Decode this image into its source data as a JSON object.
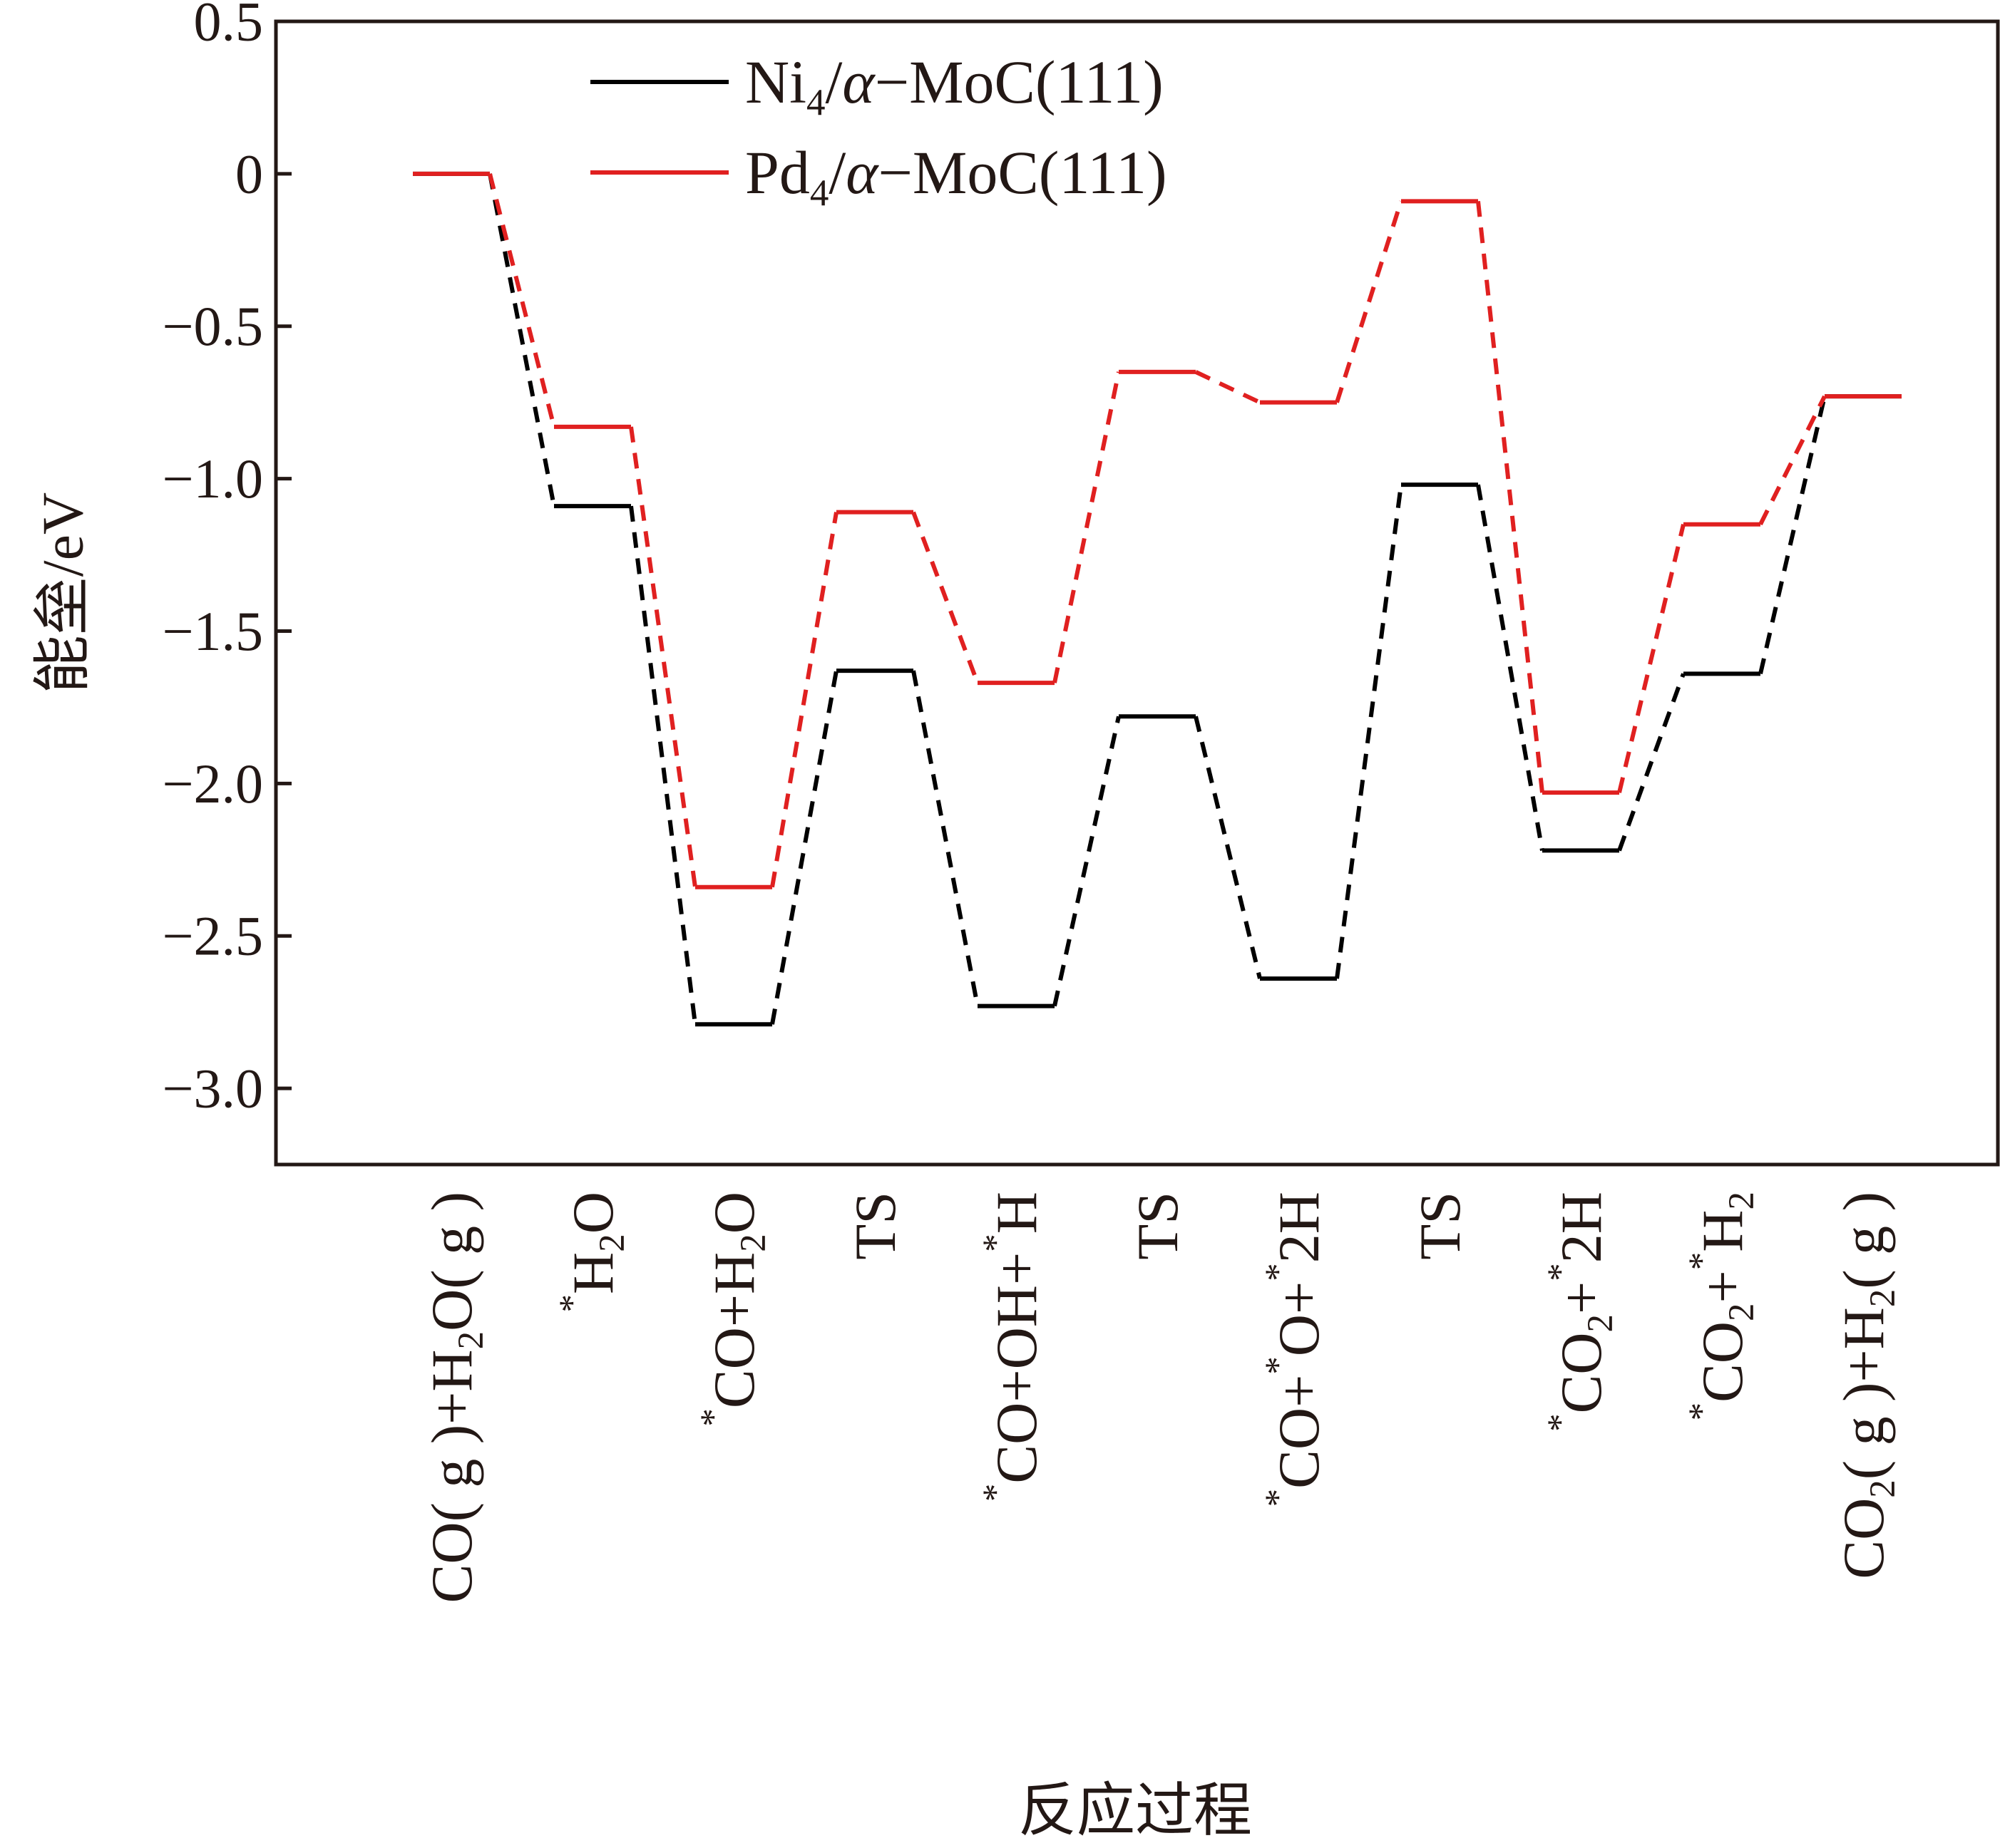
{
  "chart_data": {
    "type": "line",
    "ylabel": "能垒/eV",
    "xlabel": "反应过程",
    "ylim": [
      -3.25,
      0.5
    ],
    "yticks": [
      0.5,
      0,
      -0.5,
      -1.0,
      -1.5,
      -2.0,
      -2.5,
      -3.0
    ],
    "ytick_labels": [
      "0.5",
      "0",
      "−0.5",
      "−1.0",
      "−1.5",
      "−2.0",
      "−2.5",
      "−3.0"
    ],
    "grid": false,
    "legend_position": "top-left",
    "categories": [
      [
        {
          "t": "CO( g )+H"
        },
        {
          "t": "2",
          "sub": true
        },
        {
          "t": "O( g )"
        }
      ],
      [
        {
          "t": "*",
          "sup": true
        },
        {
          "t": "H"
        },
        {
          "t": "2",
          "sub": true
        },
        {
          "t": "O"
        }
      ],
      [
        {
          "t": "*",
          "sup": true
        },
        {
          "t": "CO+H"
        },
        {
          "t": "2",
          "sub": true
        },
        {
          "t": "O"
        }
      ],
      [
        {
          "t": "TS"
        }
      ],
      [
        {
          "t": "*",
          "sup": true
        },
        {
          "t": "CO+OH+"
        },
        {
          "t": "*",
          "sup": true
        },
        {
          "t": "H"
        }
      ],
      [
        {
          "t": "TS"
        }
      ],
      [
        {
          "t": "*",
          "sup": true
        },
        {
          "t": "CO+"
        },
        {
          "t": "*",
          "sup": true
        },
        {
          "t": "O+"
        },
        {
          "t": "*",
          "sup": true
        },
        {
          "t": "2H"
        }
      ],
      [
        {
          "t": "TS"
        }
      ],
      [
        {
          "t": "*",
          "sup": true
        },
        {
          "t": "CO"
        },
        {
          "t": "2",
          "sub": true
        },
        {
          "t": "+"
        },
        {
          "t": "*",
          "sup": true
        },
        {
          "t": "2H"
        }
      ],
      [
        {
          "t": "*",
          "sup": true
        },
        {
          "t": "CO"
        },
        {
          "t": "2",
          "sub": true
        },
        {
          "t": "+"
        },
        {
          "t": "*",
          "sup": true
        },
        {
          "t": "H"
        },
        {
          "t": "2",
          "sub": true
        }
      ],
      [
        {
          "t": "CO"
        },
        {
          "t": "2",
          "sub": true
        },
        {
          "t": "( g )+H"
        },
        {
          "t": "2",
          "sub": true
        },
        {
          "t": "( g )"
        }
      ]
    ],
    "series": [
      {
        "name_parts": [
          {
            "t": "Ni"
          },
          {
            "t": "4",
            "sub": true
          },
          {
            "t": "/"
          },
          {
            "t": "α",
            "italic": true
          },
          {
            "t": "−MoC(111)"
          }
        ],
        "color": "#000000",
        "values": [
          0,
          -1.09,
          -2.79,
          -1.63,
          -2.73,
          -1.78,
          -2.64,
          -1.02,
          -2.22,
          -1.64,
          -0.73
        ]
      },
      {
        "name_parts": [
          {
            "t": "Pd"
          },
          {
            "t": "4",
            "sub": true
          },
          {
            "t": "/"
          },
          {
            "t": "α",
            "italic": true
          },
          {
            "t": "−MoC(111)"
          }
        ],
        "color": "#e02020",
        "values": [
          0,
          -0.83,
          -2.34,
          -1.11,
          -1.67,
          -0.65,
          -0.75,
          -0.09,
          -2.03,
          -1.15,
          -0.73
        ]
      }
    ]
  }
}
